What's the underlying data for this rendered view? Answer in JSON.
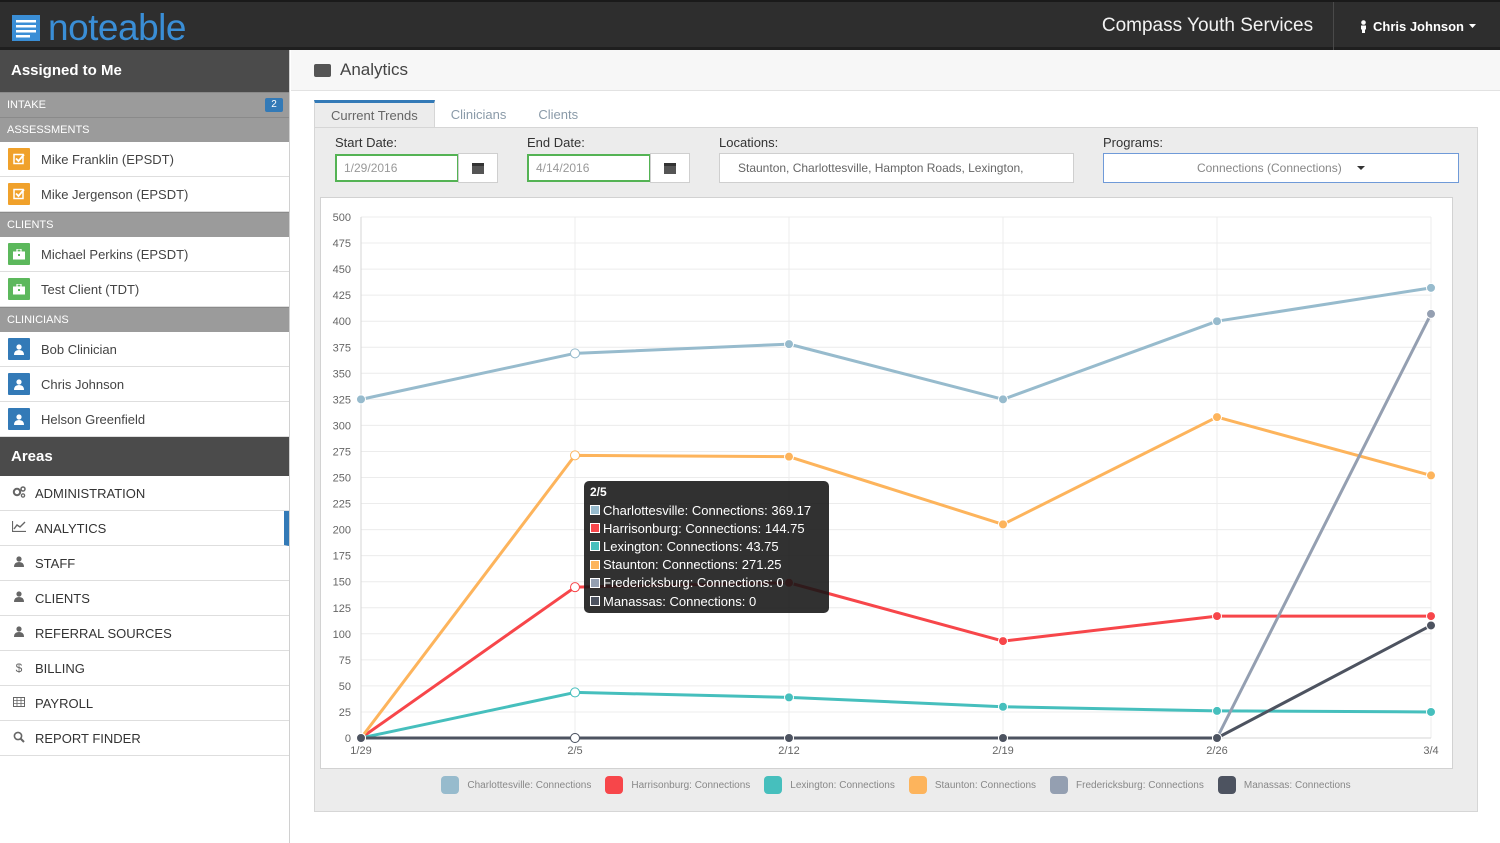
{
  "app": {
    "logo_text": "noteable",
    "org_name": "Compass Youth Services",
    "user_name": "Chris Johnson"
  },
  "sidebar": {
    "title": "Assigned to Me",
    "sections": [
      {
        "name": "INTAKE",
        "badge": "2",
        "items": []
      },
      {
        "name": "ASSESSMENTS",
        "items": [
          {
            "label": "Mike Franklin (EPSDT)",
            "icon": "checkbox-icon",
            "color": "#f0a12b"
          },
          {
            "label": "Mike Jergenson (EPSDT)",
            "icon": "checkbox-icon",
            "color": "#f0a12b"
          }
        ]
      },
      {
        "name": "CLIENTS",
        "items": [
          {
            "label": "Michael Perkins (EPSDT)",
            "icon": "briefcase-icon",
            "color": "#5cb85c"
          },
          {
            "label": "Test Client (TDT)",
            "icon": "briefcase-icon",
            "color": "#5cb85c"
          }
        ]
      },
      {
        "name": "CLINICIANS",
        "items": [
          {
            "label": "Bob Clinician",
            "icon": "user-icon",
            "color": "#337ab7"
          },
          {
            "label": "Chris Johnson",
            "icon": "user-icon",
            "color": "#337ab7"
          },
          {
            "label": "Helson Greenfield",
            "icon": "user-icon",
            "color": "#337ab7"
          }
        ]
      }
    ],
    "areas_title": "Areas",
    "nav": [
      {
        "label": "ADMINISTRATION",
        "icon": "cogs-icon"
      },
      {
        "label": "ANALYTICS",
        "icon": "line-chart-icon",
        "active": true
      },
      {
        "label": "STAFF",
        "icon": "user-icon"
      },
      {
        "label": "CLIENTS",
        "icon": "user-icon"
      },
      {
        "label": "REFERRAL SOURCES",
        "icon": "user-icon"
      },
      {
        "label": "BILLING",
        "icon": "dollar-icon"
      },
      {
        "label": "PAYROLL",
        "icon": "table-icon"
      },
      {
        "label": "REPORT FINDER",
        "icon": "search-icon"
      }
    ]
  },
  "page": {
    "title": "Analytics"
  },
  "tabs": [
    {
      "label": "Current Trends",
      "active": true
    },
    {
      "label": "Clinicians"
    },
    {
      "label": "Clients"
    }
  ],
  "filters": {
    "start_label": "Start Date:",
    "start_value": "1/29/2016",
    "end_label": "End Date:",
    "end_value": "4/14/2016",
    "locations_label": "Locations:",
    "locations_value": "Staunton,  Charlottesville,  Hampton Roads,  Lexington,",
    "programs_label": "Programs:",
    "programs_value": "Connections (Connections)"
  },
  "chart_data": {
    "type": "line",
    "categories": [
      "1/29",
      "2/5",
      "2/12",
      "2/19",
      "2/26",
      "3/4"
    ],
    "ylim": [
      0,
      500
    ],
    "yticks": [
      0,
      25,
      50,
      75,
      100,
      125,
      150,
      175,
      200,
      225,
      250,
      275,
      300,
      325,
      350,
      375,
      400,
      425,
      450,
      475,
      500
    ],
    "grid": true,
    "legend_position": "bottom",
    "series": [
      {
        "name": "Charlottesville: Connections",
        "color": "#97bbcd",
        "values": [
          325,
          369.17,
          378,
          325,
          400,
          432
        ]
      },
      {
        "name": "Harrisonburg: Connections",
        "color": "#f7464a",
        "values": [
          0,
          144.75,
          149,
          93,
          117,
          117
        ]
      },
      {
        "name": "Lexington: Connections",
        "color": "#46bfbd",
        "values": [
          0,
          43.75,
          39,
          30,
          26,
          25
        ]
      },
      {
        "name": "Staunton: Connections",
        "color": "#fdb45c",
        "values": [
          0,
          271.25,
          270,
          205,
          308,
          252
        ]
      },
      {
        "name": "Fredericksburg: Connections",
        "color": "#949fb1",
        "values": [
          0,
          0,
          0,
          0,
          0,
          407
        ]
      },
      {
        "name": "Manassas: Connections",
        "color": "#4d5360",
        "values": [
          0,
          0,
          0,
          0,
          0,
          108
        ]
      }
    ],
    "tooltip": {
      "title": "2/5",
      "rows": [
        {
          "text": "Charlottesville: Connections: 369.17",
          "color": "#97bbcd"
        },
        {
          "text": "Harrisonburg: Connections: 144.75",
          "color": "#f7464a"
        },
        {
          "text": "Lexington: Connections: 43.75",
          "color": "#46bfbd"
        },
        {
          "text": "Staunton: Connections: 271.25",
          "color": "#fdb45c"
        },
        {
          "text": "Fredericksburg: Connections: 0",
          "color": "#949fb1"
        },
        {
          "text": "Manassas: Connections: 0",
          "color": "#4d5360"
        }
      ]
    }
  }
}
